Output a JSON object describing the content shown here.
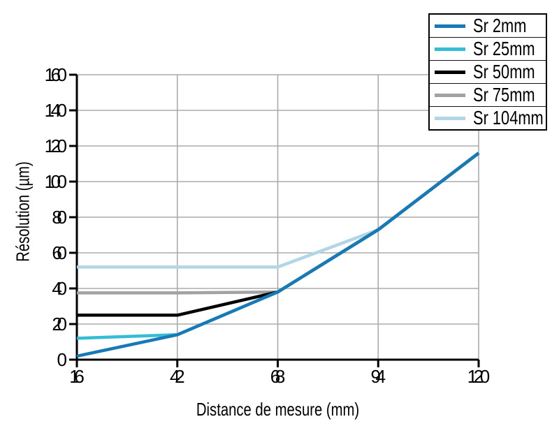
{
  "chart_data": {
    "type": "line",
    "x": [
      16,
      42,
      68,
      94,
      120
    ],
    "series": [
      {
        "name": "Sr 2mm",
        "color": "#1779b5",
        "values": [
          2,
          14,
          38,
          73,
          116
        ]
      },
      {
        "name": "Sr 25mm",
        "color": "#36bdd6",
        "values": [
          12,
          14,
          38,
          73,
          116
        ]
      },
      {
        "name": "Sr 50mm",
        "color": "#000000",
        "values": [
          25,
          25,
          38,
          73,
          116
        ]
      },
      {
        "name": "Sr 75mm",
        "color": "#a2a2a2",
        "values": [
          37.5,
          37.5,
          38,
          73,
          116
        ]
      },
      {
        "name": "Sr 104mm",
        "color": "#b2d6e8",
        "values": [
          52,
          52,
          52,
          73,
          116
        ]
      }
    ],
    "xlabel": "Distance de mesure (mm)",
    "ylabel": "Résolution (µm)",
    "xticks": [
      16,
      42,
      68,
      94,
      120
    ],
    "yticks": [
      0,
      20,
      40,
      60,
      80,
      100,
      120,
      140,
      160
    ],
    "xlim": [
      16,
      120
    ],
    "ylim": [
      0,
      160
    ],
    "grid": true,
    "legend_position": "top-right",
    "colors": {
      "axis": "#000000",
      "gridline": "#ababab",
      "background": "#ffffff",
      "tick_label": "#000000"
    }
  }
}
